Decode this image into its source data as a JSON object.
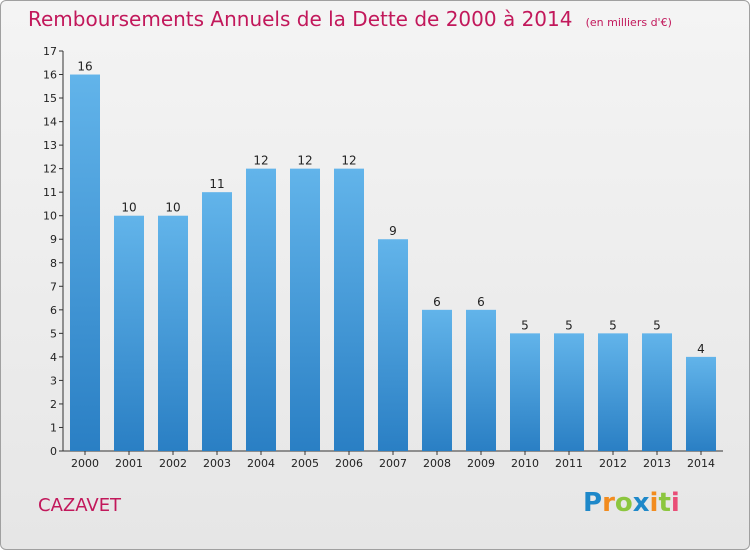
{
  "title": "Remboursements Annuels de la Dette de 2000 à 2014",
  "subtitle": "(en milliers d'€)",
  "commune": "CAZAVET",
  "logo": {
    "text": "Proxiti",
    "letters": [
      {
        "ch": "P",
        "color": "#1e88c9"
      },
      {
        "ch": "r",
        "color": "#f28c1f"
      },
      {
        "ch": "o",
        "color": "#8cc63f"
      },
      {
        "ch": "x",
        "color": "#1e88c9"
      },
      {
        "ch": "i",
        "color": "#f28c1f"
      },
      {
        "ch": "t",
        "color": "#8cc63f"
      },
      {
        "ch": "i",
        "color": "#e94e77"
      }
    ]
  },
  "colors": {
    "bar_top": "#62b4ea",
    "bar_bottom": "#2a7fc4",
    "title": "#c2185b",
    "axis": "#333333"
  },
  "chart_data": {
    "type": "bar",
    "title": "Remboursements Annuels de la Dette de 2000 à 2014",
    "subtitle": "(en milliers d'€)",
    "categories": [
      "2000",
      "2001",
      "2002",
      "2003",
      "2004",
      "2005",
      "2006",
      "2007",
      "2008",
      "2009",
      "2010",
      "2011",
      "2012",
      "2013",
      "2014"
    ],
    "values": [
      16,
      10,
      10,
      11,
      12,
      12,
      12,
      9,
      6,
      6,
      5,
      5,
      5,
      5,
      4
    ],
    "data_labels": [
      "16",
      "10",
      "10",
      "11",
      "12",
      "12",
      "12",
      "9",
      "6",
      "6",
      "5",
      "5",
      "5",
      "5",
      "4"
    ],
    "yticks": [
      0,
      1,
      2,
      3,
      4,
      5,
      6,
      7,
      8,
      9,
      10,
      11,
      12,
      13,
      14,
      15,
      16,
      17
    ],
    "ylim": [
      0,
      17
    ],
    "xlabel": "",
    "ylabel": "",
    "grid": false,
    "legend": "none"
  }
}
